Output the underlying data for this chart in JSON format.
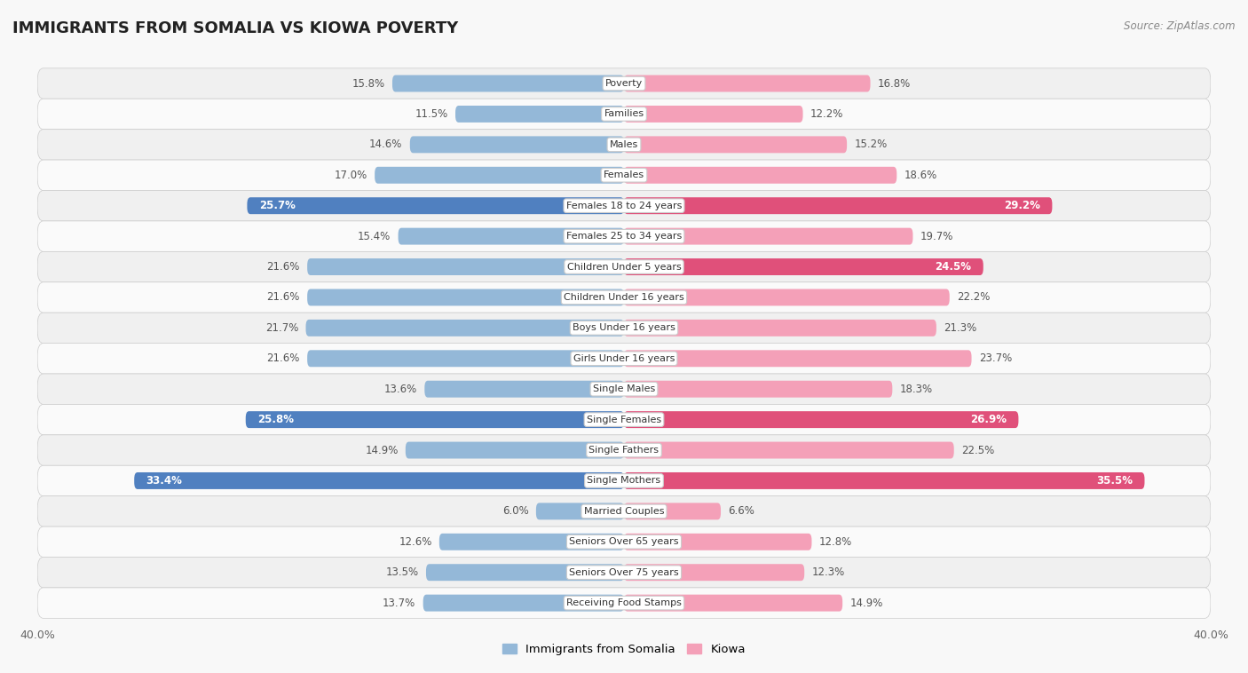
{
  "title": "IMMIGRANTS FROM SOMALIA VS KIOWA POVERTY",
  "source": "Source: ZipAtlas.com",
  "categories": [
    "Poverty",
    "Families",
    "Males",
    "Females",
    "Females 18 to 24 years",
    "Females 25 to 34 years",
    "Children Under 5 years",
    "Children Under 16 years",
    "Boys Under 16 years",
    "Girls Under 16 years",
    "Single Males",
    "Single Females",
    "Single Fathers",
    "Single Mothers",
    "Married Couples",
    "Seniors Over 65 years",
    "Seniors Over 75 years",
    "Receiving Food Stamps"
  ],
  "somalia_values": [
    15.8,
    11.5,
    14.6,
    17.0,
    25.7,
    15.4,
    21.6,
    21.6,
    21.7,
    21.6,
    13.6,
    25.8,
    14.9,
    33.4,
    6.0,
    12.6,
    13.5,
    13.7
  ],
  "kiowa_values": [
    16.8,
    12.2,
    15.2,
    18.6,
    29.2,
    19.7,
    24.5,
    22.2,
    21.3,
    23.7,
    18.3,
    26.9,
    22.5,
    35.5,
    6.6,
    12.8,
    12.3,
    14.9
  ],
  "somalia_color": "#94b8d8",
  "kiowa_color": "#f4a0b8",
  "somalia_highlight_indices": [
    4,
    11,
    13
  ],
  "kiowa_highlight_indices": [
    4,
    6,
    11,
    13
  ],
  "somalia_highlight_color": "#5080c0",
  "kiowa_highlight_color": "#e0507a",
  "bg_even": "#f0f0f0",
  "bg_odd": "#fafafa",
  "axis_max": 40.0,
  "legend_label_somalia": "Immigrants from Somalia",
  "legend_label_kiowa": "Kiowa",
  "bar_height": 0.55,
  "category_fontsize": 8.0,
  "value_fontsize": 8.5,
  "title_fontsize": 13
}
